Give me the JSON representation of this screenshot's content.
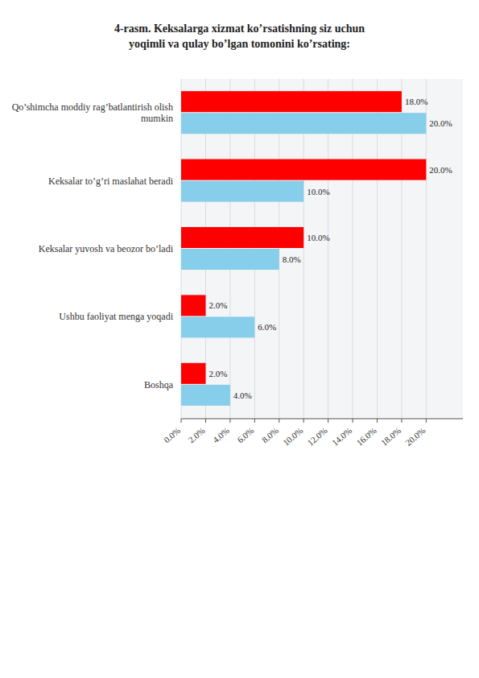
{
  "chart_data": {
    "type": "bar",
    "orientation": "horizontal",
    "title": "4-rasm. Keksalarga xizmat ko’rsatishning siz uchun\nyoqimli va qulay bo’lgan tomonini ko’rsating:",
    "categories": [
      "Qo’shimcha moddiy rag’batlantirish olish\nmumkin",
      "Keksalar to’g’ri maslahat beradi",
      "Keksalar yuvosh va beozor bo’ladi",
      "Ushbu faoliyat menga yoqadi",
      "Boshqa"
    ],
    "series": [
      {
        "color": "#FF0000",
        "values": [
          18.0,
          20.0,
          10.0,
          2.0,
          2.0
        ],
        "value_labels": [
          "18.0%",
          "20.0%",
          "10.0%",
          "2.0%",
          "2.0%"
        ]
      },
      {
        "color": "#87CEEB",
        "values": [
          20.0,
          10.0,
          8.0,
          6.0,
          4.0
        ],
        "value_labels": [
          "20.0%",
          "10.0%",
          "8.0%",
          "6.0%",
          "4.0%"
        ]
      }
    ],
    "data_labels": true,
    "grid": true,
    "xlim": [
      0,
      23
    ],
    "xticks": [
      {
        "value": 0,
        "label": "0.0%"
      },
      {
        "value": 2,
        "label": "2.0%"
      },
      {
        "value": 4,
        "label": "4.0%"
      },
      {
        "value": 6,
        "label": "6.0%"
      },
      {
        "value": 8,
        "label": "8.0%"
      },
      {
        "value": 10,
        "label": "10.0%"
      },
      {
        "value": 12,
        "label": "12.0%"
      },
      {
        "value": 14,
        "label": "14.0%"
      },
      {
        "value": 16,
        "label": "16.0%"
      },
      {
        "value": 18,
        "label": "18.0%"
      },
      {
        "value": 20,
        "label": "20.0%"
      }
    ]
  }
}
